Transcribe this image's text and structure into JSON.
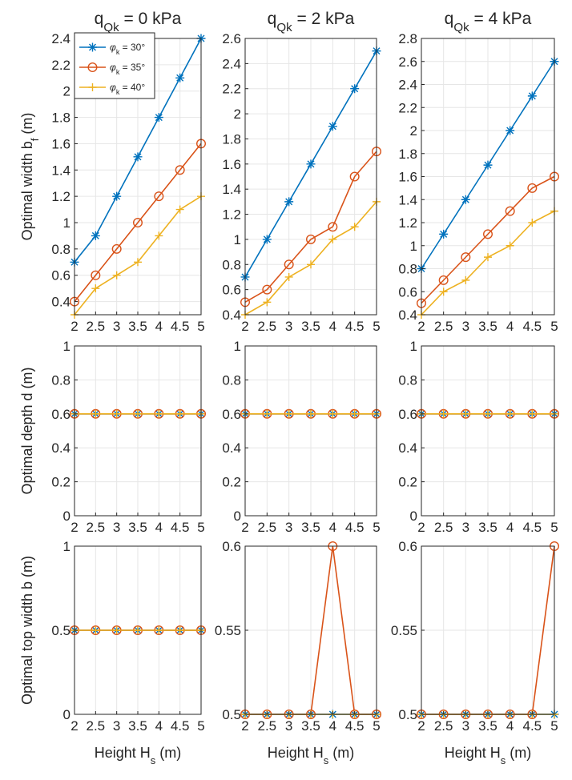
{
  "colors": {
    "phi30": "#0072BD",
    "phi35": "#D95319",
    "phi40": "#EDB120",
    "grid": "#e6e6e6",
    "axis": "#262626"
  },
  "legend": {
    "entries": [
      {
        "sym": "φ",
        "sub": "k",
        "rest": " = 30°"
      },
      {
        "sym": "φ",
        "sub": "k",
        "rest": " = 35°"
      },
      {
        "sym": "φ",
        "sub": "k",
        "rest": " = 40°"
      }
    ]
  },
  "chart_data": [
    {
      "id": "bf0",
      "type": "line",
      "col": 0,
      "row": 0,
      "title": {
        "main": "q",
        "sub": "Qk",
        "rest": " = 0 kPa"
      },
      "ylabel": {
        "main": "Optimal width b",
        "sub": "f",
        "rest": " (m)"
      },
      "xlabel": null,
      "x": [
        2,
        2.5,
        3,
        3.5,
        4,
        4.5,
        5
      ],
      "xlim": [
        2,
        5
      ],
      "xticks": [
        "2",
        "2.5",
        "3",
        "3.5",
        "4",
        "4.5",
        "5"
      ],
      "ylim": [
        0.3,
        2.4
      ],
      "yticks": [
        "0.4",
        "0.6",
        "0.8",
        "1",
        "1.2",
        "1.4",
        "1.6",
        "1.8",
        "2",
        "2.2",
        "2.4"
      ],
      "series": [
        {
          "name": "φk = 30°",
          "values": [
            0.7,
            0.9,
            1.2,
            1.5,
            1.8,
            2.1,
            2.4
          ]
        },
        {
          "name": "φk = 35°",
          "values": [
            0.4,
            0.6,
            0.8,
            1.0,
            1.2,
            1.4,
            1.6
          ]
        },
        {
          "name": "φk = 40°",
          "values": [
            0.3,
            0.5,
            0.6,
            0.7,
            0.9,
            1.1,
            1.2
          ]
        }
      ]
    },
    {
      "id": "bf2",
      "type": "line",
      "col": 1,
      "row": 0,
      "title": {
        "main": "q",
        "sub": "Qk",
        "rest": " = 2 kPa"
      },
      "ylabel": null,
      "xlabel": null,
      "x": [
        2,
        2.5,
        3,
        3.5,
        4,
        4.5,
        5
      ],
      "xlim": [
        2,
        5
      ],
      "xticks": [
        "2",
        "2.5",
        "3",
        "3.5",
        "4",
        "4.5",
        "5"
      ],
      "ylim": [
        0.4,
        2.6
      ],
      "yticks": [
        "0.4",
        "0.6",
        "0.8",
        "1",
        "1.2",
        "1.4",
        "1.6",
        "1.8",
        "2",
        "2.2",
        "2.4",
        "2.6"
      ],
      "series": [
        {
          "name": "φk = 30°",
          "values": [
            0.7,
            1.0,
            1.3,
            1.6,
            1.9,
            2.2,
            2.5
          ]
        },
        {
          "name": "φk = 35°",
          "values": [
            0.5,
            0.6,
            0.8,
            1.0,
            1.1,
            1.5,
            1.7
          ]
        },
        {
          "name": "φk = 40°",
          "values": [
            0.4,
            0.5,
            0.7,
            0.8,
            1.0,
            1.1,
            1.3
          ]
        }
      ]
    },
    {
      "id": "bf4",
      "type": "line",
      "col": 2,
      "row": 0,
      "title": {
        "main": "q",
        "sub": "Qk",
        "rest": " = 4 kPa"
      },
      "ylabel": null,
      "xlabel": null,
      "x": [
        2,
        2.5,
        3,
        3.5,
        4,
        4.5,
        5
      ],
      "xlim": [
        2,
        5
      ],
      "xticks": [
        "2",
        "2.5",
        "3",
        "3.5",
        "4",
        "4.5",
        "5"
      ],
      "ylim": [
        0.4,
        2.8
      ],
      "yticks": [
        "0.4",
        "0.6",
        "0.8",
        "1",
        "1.2",
        "1.4",
        "1.6",
        "1.8",
        "2",
        "2.2",
        "2.4",
        "2.6",
        "2.8"
      ],
      "series": [
        {
          "name": "φk = 30°",
          "values": [
            0.8,
            1.1,
            1.4,
            1.7,
            2.0,
            2.3,
            2.6
          ]
        },
        {
          "name": "φk = 35°",
          "values": [
            0.5,
            0.7,
            0.9,
            1.1,
            1.3,
            1.5,
            1.6
          ]
        },
        {
          "name": "φk = 40°",
          "values": [
            0.4,
            0.6,
            0.7,
            0.9,
            1.0,
            1.2,
            1.3
          ]
        }
      ]
    },
    {
      "id": "d0",
      "type": "line",
      "col": 0,
      "row": 1,
      "title": null,
      "ylabel": {
        "main": "Optimal depth d (m)",
        "sub": "",
        "rest": ""
      },
      "xlabel": null,
      "x": [
        2,
        2.5,
        3,
        3.5,
        4,
        4.5,
        5
      ],
      "xlim": [
        2,
        5
      ],
      "xticks": [
        "2",
        "2.5",
        "3",
        "3.5",
        "4",
        "4.5",
        "5"
      ],
      "ylim": [
        0,
        1
      ],
      "yticks": [
        "0",
        "0.2",
        "0.4",
        "0.6",
        "0.8",
        "1"
      ],
      "series": [
        {
          "name": "φk = 30°",
          "values": [
            0.6,
            0.6,
            0.6,
            0.6,
            0.6,
            0.6,
            0.6
          ]
        },
        {
          "name": "φk = 35°",
          "values": [
            0.6,
            0.6,
            0.6,
            0.6,
            0.6,
            0.6,
            0.6
          ]
        },
        {
          "name": "φk = 40°",
          "values": [
            0.6,
            0.6,
            0.6,
            0.6,
            0.6,
            0.6,
            0.6
          ]
        }
      ]
    },
    {
      "id": "d2",
      "type": "line",
      "col": 1,
      "row": 1,
      "title": null,
      "ylabel": null,
      "xlabel": null,
      "x": [
        2,
        2.5,
        3,
        3.5,
        4,
        4.5,
        5
      ],
      "xlim": [
        2,
        5
      ],
      "xticks": [
        "2",
        "2.5",
        "3",
        "3.5",
        "4",
        "4.5",
        "5"
      ],
      "ylim": [
        0,
        1
      ],
      "yticks": [
        "0",
        "0.2",
        "0.4",
        "0.6",
        "0.8",
        "1"
      ],
      "series": [
        {
          "name": "φk = 30°",
          "values": [
            0.6,
            0.6,
            0.6,
            0.6,
            0.6,
            0.6,
            0.6
          ]
        },
        {
          "name": "φk = 35°",
          "values": [
            0.6,
            0.6,
            0.6,
            0.6,
            0.6,
            0.6,
            0.6
          ]
        },
        {
          "name": "φk = 40°",
          "values": [
            0.6,
            0.6,
            0.6,
            0.6,
            0.6,
            0.6,
            0.6
          ]
        }
      ]
    },
    {
      "id": "d4",
      "type": "line",
      "col": 2,
      "row": 1,
      "title": null,
      "ylabel": null,
      "xlabel": null,
      "x": [
        2,
        2.5,
        3,
        3.5,
        4,
        4.5,
        5
      ],
      "xlim": [
        2,
        5
      ],
      "xticks": [
        "2",
        "2.5",
        "3",
        "3.5",
        "4",
        "4.5",
        "5"
      ],
      "ylim": [
        0,
        1
      ],
      "yticks": [
        "0",
        "0.2",
        "0.4",
        "0.6",
        "0.8",
        "1"
      ],
      "series": [
        {
          "name": "φk = 30°",
          "values": [
            0.6,
            0.6,
            0.6,
            0.6,
            0.6,
            0.6,
            0.6
          ]
        },
        {
          "name": "φk = 35°",
          "values": [
            0.6,
            0.6,
            0.6,
            0.6,
            0.6,
            0.6,
            0.6
          ]
        },
        {
          "name": "φk = 40°",
          "values": [
            0.6,
            0.6,
            0.6,
            0.6,
            0.6,
            0.6,
            0.6
          ]
        }
      ]
    },
    {
      "id": "b0",
      "type": "line",
      "col": 0,
      "row": 2,
      "title": null,
      "ylabel": {
        "main": "Optimal top width b (m)",
        "sub": "",
        "rest": ""
      },
      "xlabel": {
        "main": "Height H",
        "sub": "s",
        "rest": " (m)"
      },
      "x": [
        2,
        2.5,
        3,
        3.5,
        4,
        4.5,
        5
      ],
      "xlim": [
        2,
        5
      ],
      "xticks": [
        "2",
        "2.5",
        "3",
        "3.5",
        "4",
        "4.5",
        "5"
      ],
      "ylim": [
        0,
        1
      ],
      "yticks": [
        "0",
        "0.5",
        "1"
      ],
      "series": [
        {
          "name": "φk = 30°",
          "values": [
            0.5,
            0.5,
            0.5,
            0.5,
            0.5,
            0.5,
            0.5
          ]
        },
        {
          "name": "φk = 35°",
          "values": [
            0.5,
            0.5,
            0.5,
            0.5,
            0.5,
            0.5,
            0.5
          ]
        },
        {
          "name": "φk = 40°",
          "values": [
            0.5,
            0.5,
            0.5,
            0.5,
            0.5,
            0.5,
            0.5
          ]
        }
      ]
    },
    {
      "id": "b2",
      "type": "line",
      "col": 1,
      "row": 2,
      "title": null,
      "ylabel": null,
      "xlabel": {
        "main": "Height H",
        "sub": "s",
        "rest": " (m)"
      },
      "x": [
        2,
        2.5,
        3,
        3.5,
        4,
        4.5,
        5
      ],
      "xlim": [
        2,
        5
      ],
      "xticks": [
        "2",
        "2.5",
        "3",
        "3.5",
        "4",
        "4.5",
        "5"
      ],
      "ylim": [
        0.5,
        0.6
      ],
      "yticks": [
        "0.5",
        "0.55",
        "0.6"
      ],
      "series": [
        {
          "name": "φk = 30°",
          "values": [
            0.5,
            0.5,
            0.5,
            0.5,
            0.5,
            0.5,
            0.5
          ]
        },
        {
          "name": "φk = 35°",
          "values": [
            0.5,
            0.5,
            0.5,
            0.5,
            0.6,
            0.5,
            0.5
          ]
        },
        {
          "name": "φk = 40°",
          "values": [
            0.5,
            0.5,
            0.5,
            0.5,
            0.5,
            0.5,
            0.5
          ]
        }
      ]
    },
    {
      "id": "b4",
      "type": "line",
      "col": 2,
      "row": 2,
      "title": null,
      "ylabel": null,
      "xlabel": {
        "main": "Height H",
        "sub": "s",
        "rest": " (m)"
      },
      "x": [
        2,
        2.5,
        3,
        3.5,
        4,
        4.5,
        5
      ],
      "xlim": [
        2,
        5
      ],
      "xticks": [
        "2",
        "2.5",
        "3",
        "3.5",
        "4",
        "4.5",
        "5"
      ],
      "ylim": [
        0.5,
        0.6
      ],
      "yticks": [
        "0.5",
        "0.55",
        "0.6"
      ],
      "series": [
        {
          "name": "φk = 30°",
          "values": [
            0.5,
            0.5,
            0.5,
            0.5,
            0.5,
            0.5,
            0.5
          ]
        },
        {
          "name": "φk = 35°",
          "values": [
            0.5,
            0.5,
            0.5,
            0.5,
            0.5,
            0.5,
            0.6
          ]
        },
        {
          "name": "φk = 40°",
          "values": [
            0.5,
            0.5,
            0.5,
            0.5,
            0.5,
            0.5,
            0.5
          ]
        }
      ]
    }
  ]
}
